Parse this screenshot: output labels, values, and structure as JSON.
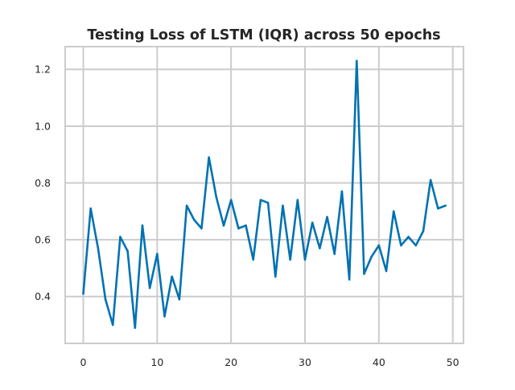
{
  "chart_data": {
    "type": "line",
    "title": "Testing Loss of LSTM (IQR) across 50 epochs",
    "xlabel": "",
    "ylabel": "",
    "xlim": [
      -2.45,
      51.45
    ],
    "ylim": [
      0.235,
      1.28
    ],
    "x_ticks": [
      0,
      10,
      20,
      30,
      40,
      50
    ],
    "y_ticks": [
      0.4,
      0.6,
      0.8,
      1.0,
      1.2
    ],
    "x_tick_labels": [
      "0",
      "10",
      "20",
      "30",
      "40",
      "50"
    ],
    "y_tick_labels": [
      "0.4",
      "0.6",
      "0.8",
      "1.0",
      "1.2"
    ],
    "grid": true,
    "legend": "none",
    "series": [
      {
        "color": "#0072b2",
        "x": [
          0,
          1,
          2,
          3,
          4,
          5,
          6,
          7,
          8,
          9,
          10,
          11,
          12,
          13,
          14,
          15,
          16,
          17,
          18,
          19,
          20,
          21,
          22,
          23,
          24,
          25,
          26,
          27,
          28,
          29,
          30,
          31,
          32,
          33,
          34,
          35,
          36,
          37,
          38,
          39,
          40,
          41,
          42,
          43,
          44,
          45,
          46,
          47,
          48,
          49
        ],
        "values": [
          0.41,
          0.71,
          0.57,
          0.39,
          0.3,
          0.61,
          0.56,
          0.29,
          0.65,
          0.43,
          0.55,
          0.33,
          0.47,
          0.39,
          0.72,
          0.67,
          0.64,
          0.89,
          0.75,
          0.65,
          0.74,
          0.64,
          0.65,
          0.53,
          0.74,
          0.73,
          0.47,
          0.72,
          0.53,
          0.74,
          0.53,
          0.66,
          0.57,
          0.68,
          0.55,
          0.77,
          0.46,
          1.23,
          0.48,
          0.54,
          0.58,
          0.49,
          0.7,
          0.58,
          0.61,
          0.58,
          0.63,
          0.81,
          0.71,
          0.72
        ]
      }
    ]
  }
}
